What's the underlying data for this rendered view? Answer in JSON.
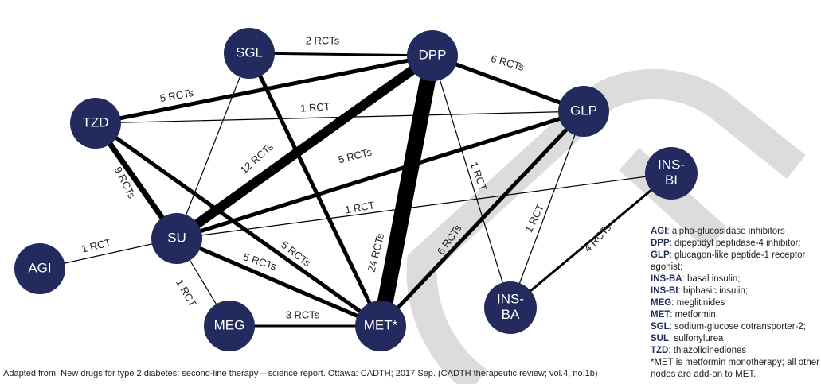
{
  "colors": {
    "node": "#222a5e",
    "edge": "#000000",
    "watermark": "#d9d9d9"
  },
  "nodes": [
    {
      "id": "SGL",
      "label": "SGL"
    },
    {
      "id": "DPP",
      "label": "DPP"
    },
    {
      "id": "TZD",
      "label": "TZD"
    },
    {
      "id": "GLP",
      "label": "GLP"
    },
    {
      "id": "INSBI",
      "label": "INS-\nBI"
    },
    {
      "id": "SU",
      "label": "SU"
    },
    {
      "id": "AGI",
      "label": "AGI"
    },
    {
      "id": "MEG",
      "label": "MEG"
    },
    {
      "id": "MET",
      "label": "MET*"
    },
    {
      "id": "INSBA",
      "label": "INS-\nBA"
    }
  ],
  "edges": [
    {
      "from": "SGL",
      "to": "DPP",
      "rcts": 2,
      "label": "2 RCTs"
    },
    {
      "from": "DPP",
      "to": "GLP",
      "rcts": 6,
      "label": "6 RCTs"
    },
    {
      "from": "TZD",
      "to": "DPP",
      "rcts": 5,
      "label": "5 RCTs"
    },
    {
      "from": "TZD",
      "to": "GLP",
      "rcts": 1,
      "label": "1 RCT"
    },
    {
      "from": "TZD",
      "to": "SU",
      "rcts": 9,
      "label": "9 RCTs"
    },
    {
      "from": "TZD",
      "to": "MET",
      "rcts": 5,
      "label": "5 RCTs"
    },
    {
      "from": "SGL",
      "to": "SU",
      "rcts": 1,
      "label": ""
    },
    {
      "from": "SGL",
      "to": "MET",
      "rcts": 5,
      "label": ""
    },
    {
      "from": "DPP",
      "to": "SU",
      "rcts": 12,
      "label": "12 RCTs"
    },
    {
      "from": "DPP",
      "to": "MET",
      "rcts": 24,
      "label": "24 RCTs"
    },
    {
      "from": "DPP",
      "to": "INSBA",
      "rcts": 1,
      "label": "1 RCT"
    },
    {
      "from": "SU",
      "to": "GLP",
      "rcts": 5,
      "label": "5 RCTs"
    },
    {
      "from": "GLP",
      "to": "MET",
      "rcts": 6,
      "label": "6 RCTs"
    },
    {
      "from": "GLP",
      "to": "INSBA",
      "rcts": 1,
      "label": "1 RCT"
    },
    {
      "from": "SU",
      "to": "INSBI",
      "rcts": 1,
      "label": "1 RCT"
    },
    {
      "from": "AGI",
      "to": "SU",
      "rcts": 1,
      "label": "1 RCT"
    },
    {
      "from": "SU",
      "to": "MEG",
      "rcts": 1,
      "label": "1 RCT"
    },
    {
      "from": "SU",
      "to": "MET",
      "rcts": 5,
      "label": "5 RCTs"
    },
    {
      "from": "MEG",
      "to": "MET",
      "rcts": 3,
      "label": "3 RCTs"
    },
    {
      "from": "INSBI",
      "to": "INSBA",
      "rcts": 4,
      "label": "4 RCTs"
    }
  ],
  "legend": [
    {
      "abbr": "AGI",
      "text": ": alpha-glucosidase inhibitors"
    },
    {
      "abbr": "DPP",
      "text": ": dipeptidyl peptidase-4 inhibitor;"
    },
    {
      "abbr": "GLP",
      "text": ": glucagon-like peptide-1 receptor agonist;"
    },
    {
      "abbr": "INS-BA",
      "text": ": basal insulin;"
    },
    {
      "abbr": "INS-BI",
      "text": ": biphasic insulin;"
    },
    {
      "abbr": "MEG",
      "text": ": meglitinides"
    },
    {
      "abbr": "MET",
      "text": ": metformin;"
    },
    {
      "abbr": "SGL",
      "text": ": sodium-glucose cotransporter-2;"
    },
    {
      "abbr": "SUL",
      "text": ": sulfonylurea"
    },
    {
      "abbr": "TZD",
      "text": ": thiazolidinediones"
    }
  ],
  "legend_note": "*MET is metformin monotherapy; all other nodes are add-on to MET.",
  "source": "Adapted from: New drugs for type 2 diabetes: second-line therapy – science report. Ottawa: CADTH; 2017 Sep. (CADTH therapeutic review; vol.4, no.1b)"
}
